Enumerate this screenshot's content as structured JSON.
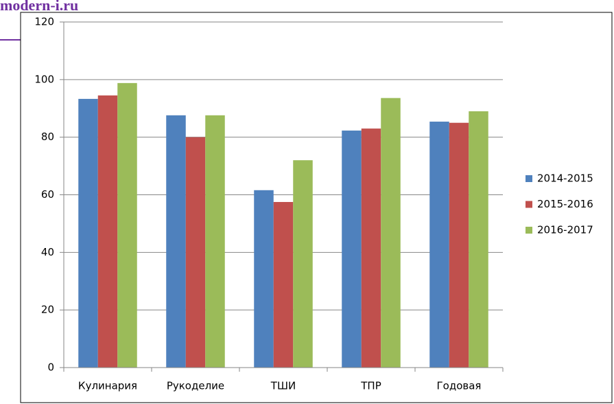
{
  "watermark": "modern-i.ru",
  "chart_data": {
    "type": "bar",
    "categories": [
      "Кулинария",
      "Рукоделие",
      "ТШИ",
      "ТПР",
      "Годовая"
    ],
    "series": [
      {
        "name": "2014-2015",
        "color": "#4f81bd",
        "values": [
          93.3,
          87.6,
          61.6,
          82.3,
          85.4
        ]
      },
      {
        "name": "2015-2016",
        "color": "#c0504d",
        "values": [
          94.5,
          80,
          57.5,
          83,
          85
        ]
      },
      {
        "name": "2016-2017",
        "color": "#9bbb59",
        "values": [
          98.8,
          87.6,
          72,
          93.6,
          89
        ]
      }
    ],
    "ylim": [
      0,
      120
    ],
    "yticks": [
      0,
      20,
      40,
      60,
      80,
      100,
      120
    ],
    "grid": true,
    "legend": "right"
  }
}
